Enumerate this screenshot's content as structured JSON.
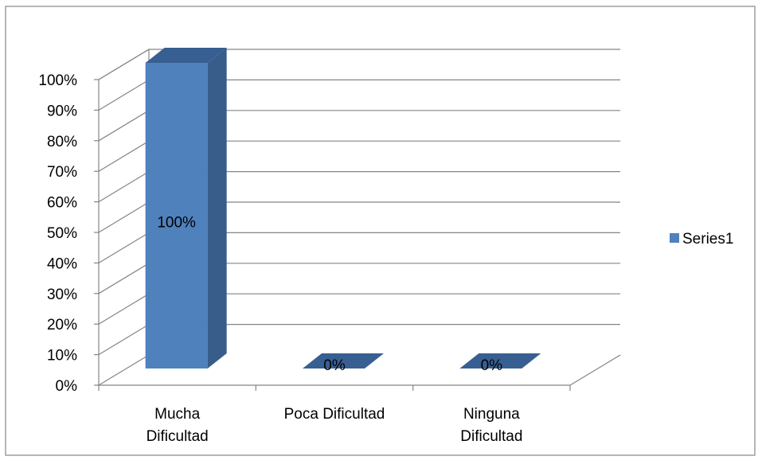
{
  "chart_data": {
    "type": "bar",
    "style": "3d-clustered-column",
    "categories": [
      "Mucha Dificultad",
      "Poca Dificultad",
      "Ninguna Dificultad"
    ],
    "category_lines": [
      [
        "Mucha",
        "Dificultad"
      ],
      [
        "Poca Dificultad"
      ],
      [
        "Ninguna",
        "Dificultad"
      ]
    ],
    "series": [
      {
        "name": "Series1",
        "values": [
          100,
          0,
          0
        ],
        "value_labels": [
          "100%",
          "0%",
          "0%"
        ]
      }
    ],
    "y_ticks": [
      "0%",
      "10%",
      "20%",
      "30%",
      "40%",
      "50%",
      "60%",
      "70%",
      "80%",
      "90%",
      "100%"
    ],
    "ylim": [
      0,
      100
    ],
    "y_unit": "%",
    "grid": true,
    "legend": "right",
    "colors": {
      "front": "#4f81bd",
      "side": "#385d8a",
      "top": "#375f91",
      "grid": "#858585",
      "border": "#868686"
    }
  }
}
